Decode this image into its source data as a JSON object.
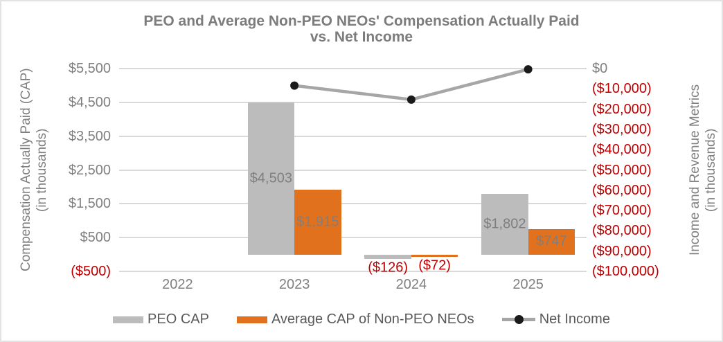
{
  "window": {
    "background": "#FFFFFF",
    "border_color": "#E2E2E2"
  },
  "chart": {
    "title_line1": "PEO and Average Non-PEO NEOs' Compensation Actually Paid",
    "title_line2": "vs. Net Income",
    "left_axis_title_line1": "Compensation Actually Paid (CAP)",
    "left_axis_title_line2": "(in thousands)",
    "right_axis_title_line1": "Income and Revenue Metrics",
    "right_axis_title_line2": "(in thousands)"
  },
  "chart_data": {
    "type": "combo_bar_line",
    "title": "PEO and Average Non-PEO NEOs' Compensation Actually Paid vs. Net Income",
    "categories": [
      "2022",
      "2023",
      "2024",
      "2025"
    ],
    "series": [
      {
        "name": "PEO CAP",
        "type": "bar",
        "axis": "left",
        "color": "#BCBCBC",
        "values": [
          null,
          4503,
          -126,
          1802
        ],
        "data_labels": [
          "",
          "$4,503",
          "($126)",
          "$1,802"
        ]
      },
      {
        "name": "Average CAP of Non-PEO NEOs",
        "type": "bar",
        "axis": "left",
        "color": "#E2711D",
        "values": [
          null,
          1915,
          -72,
          747
        ],
        "data_labels": [
          "",
          "$1,915",
          "($72)",
          "$747"
        ]
      },
      {
        "name": "Net Income",
        "type": "line",
        "axis": "right",
        "color": "#A6A6A6",
        "marker_color": "#1A1A1A",
        "values": [
          null,
          -8400,
          -15300,
          -400
        ],
        "values_estimated": true,
        "data_labels": [
          "",
          "",
          "",
          ""
        ]
      }
    ],
    "left_axis": {
      "label": "Compensation Actually Paid (CAP) (in thousands)",
      "min": -500,
      "max": 5500,
      "step": 1000,
      "tick_labels": [
        "$5,500",
        "$4,500",
        "$3,500",
        "$2,500",
        "$1,500",
        "$500",
        "($500)"
      ]
    },
    "right_axis": {
      "label": "Income and Revenue Metrics (in thousands)",
      "min": -100000,
      "max": 0,
      "step": 10000,
      "tick_labels": [
        "$0",
        "($10,000)",
        "($20,000)",
        "($30,000)",
        "($40,000)",
        "($50,000)",
        "($60,000)",
        "($70,000)",
        "($80,000)",
        "($90,000)",
        "($100,000)"
      ]
    },
    "grid": true,
    "legend_position": "bottom",
    "colors": {
      "negative_text": "#C00000",
      "positive_text": "#7F7F7F",
      "gridline": "#D9D9D9",
      "axis_text": "#808080",
      "title_text": "#7C7C7C",
      "legend_text": "#595959"
    }
  }
}
